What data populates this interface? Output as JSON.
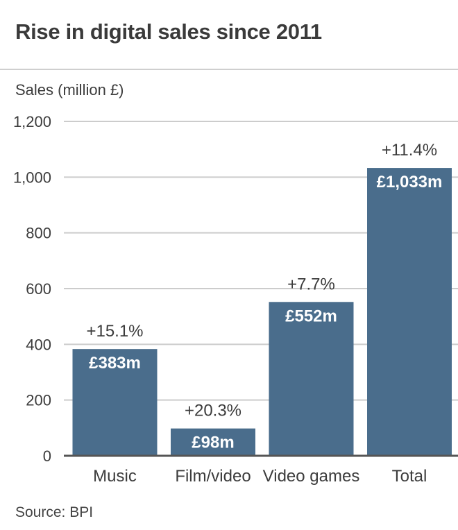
{
  "chart_data": {
    "type": "bar",
    "title": "Rise in digital sales since 2011",
    "ylabel": "Sales (million £)",
    "xlabel": "",
    "categories": [
      "Music",
      "Film/video",
      "Video games",
      "Total"
    ],
    "values": [
      383,
      98,
      552,
      1033
    ],
    "value_labels": [
      "£383m",
      "£98m",
      "£552m",
      "£1,033m"
    ],
    "change_labels": [
      "+15.1%",
      "+20.3%",
      "+7.7%",
      "+11.4%"
    ],
    "ylim": [
      0,
      1200
    ],
    "yticks": [
      0,
      200,
      400,
      600,
      800,
      1000,
      1200
    ],
    "ytick_labels": [
      "0",
      "200",
      "400",
      "600",
      "800",
      "1,000",
      "1,200"
    ],
    "grid": true,
    "bar_color": "#4a6d8c",
    "source": "Source: BPI"
  }
}
